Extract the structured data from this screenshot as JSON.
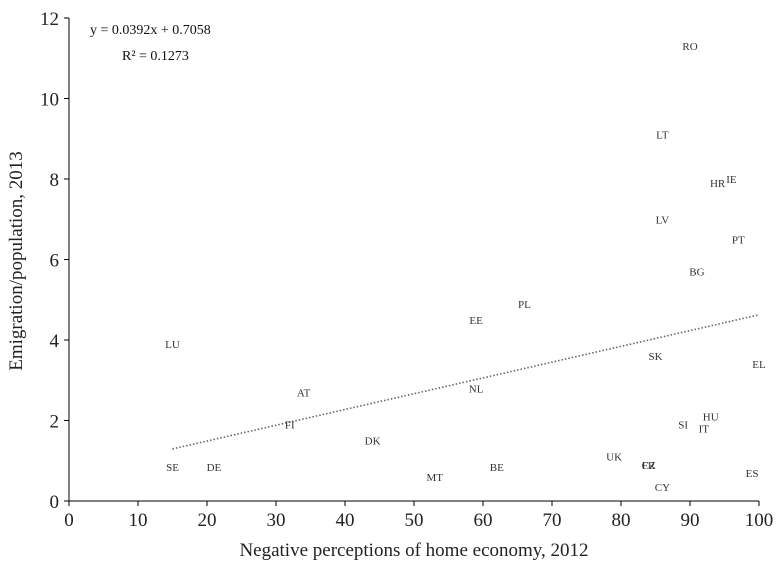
{
  "chart_data": {
    "type": "scatter",
    "xlabel": "Negative perceptions of home economy, 2012",
    "ylabel": "Emigration/population, 2013",
    "xlim": [
      0,
      100
    ],
    "ylim": [
      0,
      12
    ],
    "x_ticks": [
      0,
      10,
      20,
      30,
      40,
      50,
      60,
      70,
      80,
      90,
      100
    ],
    "y_ticks": [
      0,
      2,
      4,
      6,
      8,
      10,
      12
    ],
    "grid": false,
    "points": [
      {
        "label": "RO",
        "x": 90,
        "y": 11.3
      },
      {
        "label": "LT",
        "x": 86,
        "y": 9.1
      },
      {
        "label": "IE",
        "x": 96,
        "y": 8.0
      },
      {
        "label": "HR",
        "x": 94,
        "y": 7.9
      },
      {
        "label": "LV",
        "x": 86,
        "y": 7.0
      },
      {
        "label": "PT",
        "x": 97,
        "y": 6.5
      },
      {
        "label": "BG",
        "x": 91,
        "y": 5.7
      },
      {
        "label": "PL",
        "x": 66,
        "y": 4.9
      },
      {
        "label": "EE",
        "x": 59,
        "y": 4.5
      },
      {
        "label": "LU",
        "x": 15,
        "y": 3.9
      },
      {
        "label": "SK",
        "x": 85,
        "y": 3.6
      },
      {
        "label": "EL",
        "x": 100,
        "y": 3.4
      },
      {
        "label": "AT",
        "x": 34,
        "y": 2.7
      },
      {
        "label": "NL",
        "x": 59,
        "y": 2.8
      },
      {
        "label": "HU",
        "x": 93,
        "y": 2.1
      },
      {
        "label": "SI",
        "x": 89,
        "y": 1.9
      },
      {
        "label": "IT",
        "x": 92,
        "y": 1.8
      },
      {
        "label": "FI",
        "x": 32,
        "y": 1.9
      },
      {
        "label": "DK",
        "x": 44,
        "y": 1.5
      },
      {
        "label": "UK",
        "x": 79,
        "y": 1.1
      },
      {
        "label": "FR",
        "x": 84,
        "y": 0.9
      },
      {
        "label": "CZ",
        "x": 84,
        "y": 0.9
      },
      {
        "label": "SE",
        "x": 15,
        "y": 0.85
      },
      {
        "label": "DE",
        "x": 21,
        "y": 0.85
      },
      {
        "label": "BE",
        "x": 62,
        "y": 0.85
      },
      {
        "label": "ES",
        "x": 99,
        "y": 0.7
      },
      {
        "label": "MT",
        "x": 53,
        "y": 0.6
      },
      {
        "label": "CY",
        "x": 86,
        "y": 0.35
      }
    ],
    "trendline": {
      "slope": 0.0392,
      "intercept": 0.7058,
      "x_range": [
        15,
        100
      ],
      "equation": "y = 0.0392x + 0.7058",
      "r_squared": "R² = 0.1273"
    }
  }
}
